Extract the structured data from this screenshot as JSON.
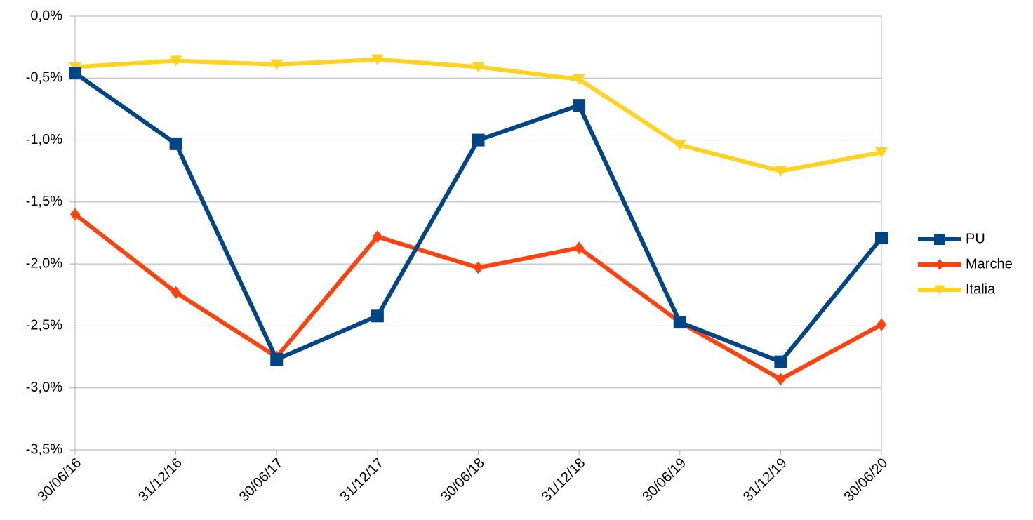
{
  "chart_data": {
    "type": "line",
    "categories": [
      "30/06/16",
      "31/12/16",
      "30/06/17",
      "31/12/17",
      "30/06/18",
      "31/12/18",
      "30/06/19",
      "31/12/19",
      "30/06/20"
    ],
    "series": [
      {
        "name": "PU",
        "color": "#004586",
        "marker": "square",
        "values": [
          -0.46,
          -1.03,
          -2.77,
          -2.42,
          -1.0,
          -0.72,
          -2.47,
          -2.79,
          -1.79
        ]
      },
      {
        "name": "Marche",
        "color": "#ff420e",
        "marker": "diamond",
        "values": [
          -1.6,
          -2.23,
          -2.75,
          -1.78,
          -2.03,
          -1.87,
          -2.47,
          -2.93,
          -2.49
        ]
      },
      {
        "name": "Italia",
        "color": "#ffd320",
        "marker": "triangle-down",
        "values": [
          -0.41,
          -0.36,
          -0.39,
          -0.35,
          -0.41,
          -0.51,
          -1.04,
          -1.25,
          -1.1
        ]
      }
    ],
    "ylim": [
      -3.5,
      0
    ],
    "yticks": [
      {
        "value": 0,
        "label": "0,0%"
      },
      {
        "value": -0.5,
        "label": "-0,5%"
      },
      {
        "value": -1,
        "label": "-1,0%"
      },
      {
        "value": -1.5,
        "label": "-1,5%"
      },
      {
        "value": -2,
        "label": "-2,0%"
      },
      {
        "value": -2.5,
        "label": "-2,5%"
      },
      {
        "value": -3,
        "label": "-3,0%"
      },
      {
        "value": -3.5,
        "label": "-3,5%"
      }
    ],
    "grid": true,
    "legend": "right"
  }
}
